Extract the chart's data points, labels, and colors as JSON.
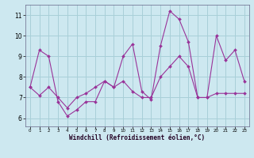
{
  "xlabel": "Windchill (Refroidissement éolien,°C)",
  "background_color": "#cde8f0",
  "grid_color": "#a8cfd8",
  "line_color": "#993399",
  "x": [
    0,
    1,
    2,
    3,
    4,
    5,
    6,
    7,
    8,
    9,
    10,
    11,
    12,
    13,
    14,
    15,
    16,
    17,
    18,
    19,
    20,
    21,
    22,
    23
  ],
  "line1": [
    7.5,
    9.3,
    9.0,
    6.8,
    6.1,
    6.4,
    6.8,
    6.8,
    7.8,
    7.5,
    9.0,
    9.6,
    7.3,
    6.9,
    9.5,
    11.2,
    10.8,
    9.7,
    7.0,
    7.0,
    10.0,
    8.8,
    9.3,
    7.8
  ],
  "line2": [
    7.5,
    7.1,
    7.5,
    7.0,
    6.5,
    7.0,
    7.2,
    7.5,
    7.8,
    7.5,
    7.8,
    7.3,
    7.0,
    7.0,
    8.0,
    8.5,
    9.0,
    8.5,
    7.0,
    7.0,
    7.2,
    7.2,
    7.2,
    7.2
  ],
  "ylim": [
    5.6,
    11.5
  ],
  "yticks": [
    6,
    7,
    8,
    9,
    10,
    11
  ],
  "xticks": [
    0,
    1,
    2,
    3,
    4,
    5,
    6,
    7,
    8,
    9,
    10,
    11,
    12,
    13,
    14,
    15,
    16,
    17,
    18,
    19,
    20,
    21,
    22,
    23
  ],
  "fig_bg": "#cde8f0"
}
